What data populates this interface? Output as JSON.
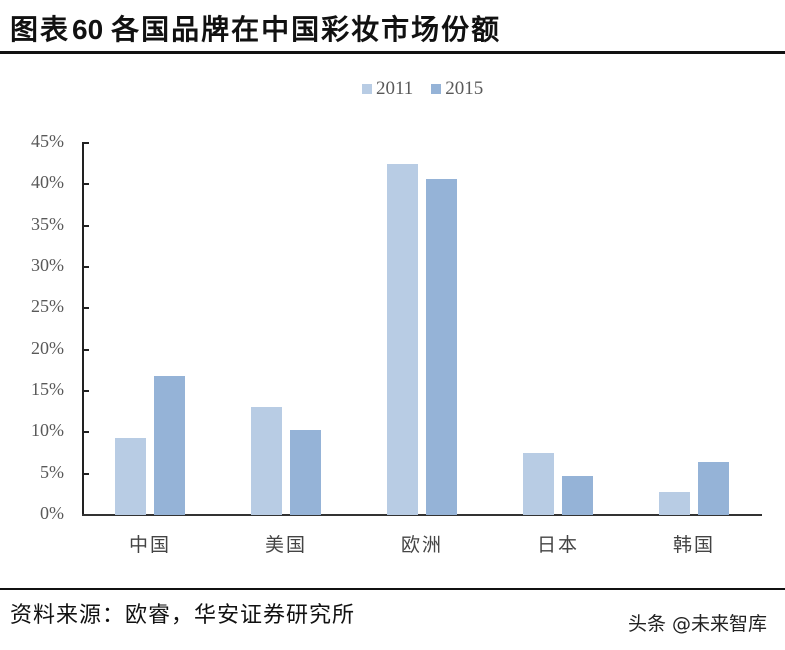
{
  "header": {
    "figure_prefix": "图表",
    "figure_number": "60",
    "title": "各国品牌在中国彩妆市场份额"
  },
  "legend": [
    {
      "label": "2011",
      "color": "#b8cce4"
    },
    {
      "label": "2015",
      "color": "#95b3d7"
    }
  ],
  "y_ticks": [
    "45%",
    "40%",
    "35%",
    "30%",
    "25%",
    "20%",
    "15%",
    "10%",
    "5%",
    "0%"
  ],
  "x_labels": [
    "中国",
    "美国",
    "欧洲",
    "日本",
    "韩国"
  ],
  "footer": {
    "source": "资料来源：欧睿，华安证券研究所",
    "watermark": "头条 @未来智库"
  },
  "chart_data": {
    "type": "bar",
    "title": "各国品牌在中国彩妆市场份额",
    "categories": [
      "中国",
      "美国",
      "欧洲",
      "日本",
      "韩国"
    ],
    "series": [
      {
        "name": "2011",
        "color": "#b8cce4",
        "values": [
          9.3,
          13.1,
          42.4,
          7.5,
          2.8
        ]
      },
      {
        "name": "2015",
        "color": "#95b3d7",
        "values": [
          16.8,
          10.3,
          40.7,
          4.7,
          6.4
        ]
      }
    ],
    "xlabel": "",
    "ylabel": "",
    "ylim": [
      0,
      45
    ],
    "y_tick_step": 5,
    "y_format": "percent",
    "grid": false,
    "legend_position": "top"
  }
}
